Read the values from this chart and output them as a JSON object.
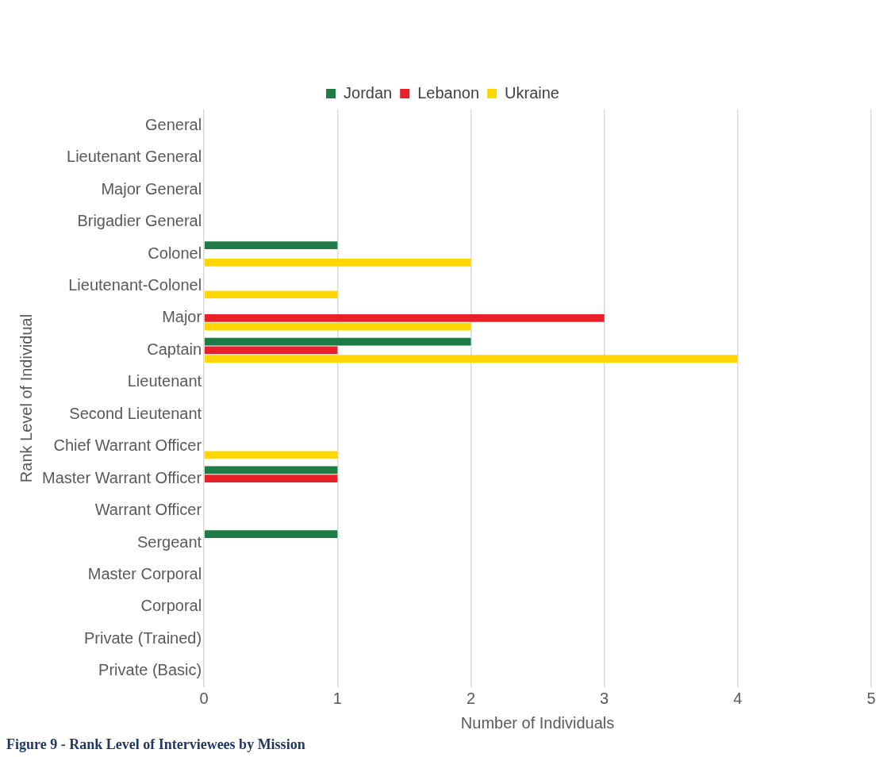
{
  "chart_data": {
    "type": "bar",
    "orientation": "horizontal",
    "xlabel": "Number of Individuals",
    "ylabel": "Rank Level of Individual",
    "categories": [
      "General",
      "Lieutenant General",
      "Major General",
      "Brigadier General",
      "Colonel",
      "Lieutenant-Colonel",
      "Major",
      "Captain",
      "Lieutenant",
      "Second Lieutenant",
      "Chief Warrant Officer",
      "Master Warrant Officer",
      "Warrant Officer",
      "Sergeant",
      "Master Corporal",
      "Corporal",
      "Private (Trained)",
      "Private (Basic)"
    ],
    "series": [
      {
        "name": "Jordan",
        "color": "#1e7b45",
        "values": [
          null,
          null,
          null,
          null,
          1,
          null,
          null,
          2,
          null,
          null,
          null,
          1,
          null,
          1,
          null,
          null,
          null,
          null
        ]
      },
      {
        "name": "Lebanon",
        "color": "#e8202a",
        "values": [
          null,
          null,
          null,
          null,
          null,
          null,
          3,
          1,
          null,
          null,
          null,
          1,
          null,
          null,
          null,
          null,
          null,
          null
        ]
      },
      {
        "name": "Ukraine",
        "color": "#ffd700",
        "values": [
          null,
          null,
          null,
          null,
          2,
          1,
          2,
          4,
          null,
          null,
          1,
          null,
          null,
          null,
          null,
          null,
          null,
          null
        ]
      }
    ],
    "xlim": [
      0,
      5
    ],
    "xticks": [
      0,
      1,
      2,
      3,
      4,
      5
    ],
    "grid": "x",
    "legend": "top",
    "annotations": [
      "Figure 9 - Rank Level of Interviewees by Mission"
    ]
  }
}
